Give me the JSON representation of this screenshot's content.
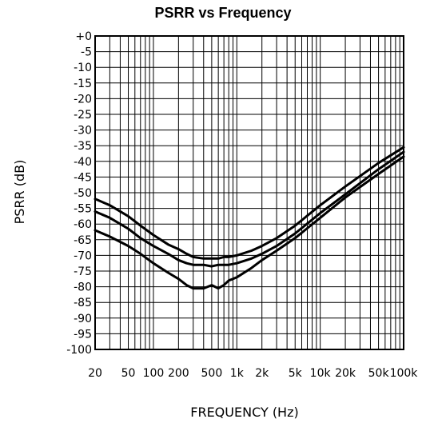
{
  "chart_data": {
    "type": "line",
    "title": "PSRR vs Frequency",
    "xlabel": "FREQUENCY (Hz)",
    "ylabel": "PSRR (dB)",
    "xscale": "log",
    "xlim": [
      20,
      100000
    ],
    "ylim": [
      -100,
      0
    ],
    "grid": true,
    "x_ticks": [
      {
        "value": 20,
        "label": "20"
      },
      {
        "value": 50,
        "label": "50"
      },
      {
        "value": 100,
        "label": "100"
      },
      {
        "value": 200,
        "label": "200"
      },
      {
        "value": 500,
        "label": "500"
      },
      {
        "value": 1000,
        "label": "1k"
      },
      {
        "value": 2000,
        "label": "2k"
      },
      {
        "value": 5000,
        "label": "5k"
      },
      {
        "value": 10000,
        "label": "10k"
      },
      {
        "value": 20000,
        "label": "20k"
      },
      {
        "value": 50000,
        "label": "50k"
      },
      {
        "value": 100000,
        "label": "100k"
      }
    ],
    "y_ticks": [
      {
        "value": 0,
        "label": "+0"
      },
      {
        "value": -5,
        "label": "-5"
      },
      {
        "value": -10,
        "label": "-10"
      },
      {
        "value": -15,
        "label": "-15"
      },
      {
        "value": -20,
        "label": "-20"
      },
      {
        "value": -25,
        "label": "-25"
      },
      {
        "value": -30,
        "label": "-30"
      },
      {
        "value": -35,
        "label": "-35"
      },
      {
        "value": -40,
        "label": "-40"
      },
      {
        "value": -45,
        "label": "-45"
      },
      {
        "value": -50,
        "label": "-50"
      },
      {
        "value": -55,
        "label": "-55"
      },
      {
        "value": -60,
        "label": "-60"
      },
      {
        "value": -65,
        "label": "-65"
      },
      {
        "value": -70,
        "label": "-70"
      },
      {
        "value": -75,
        "label": "-75"
      },
      {
        "value": -80,
        "label": "-80"
      },
      {
        "value": -85,
        "label": "-85"
      },
      {
        "value": -90,
        "label": "-90"
      },
      {
        "value": -95,
        "label": "-95"
      },
      {
        "value": -100,
        "label": "-100"
      }
    ],
    "series": [
      {
        "x": [
          20,
          30,
          50,
          70,
          100,
          150,
          200,
          250,
          300,
          400,
          500,
          600,
          700,
          800,
          1000,
          1500,
          2000,
          3000,
          5000,
          10000,
          20000,
          50000,
          100000
        ],
        "y": [
          -52,
          -54,
          -57.5,
          -60.5,
          -63.5,
          -66.5,
          -68,
          -69.5,
          -70.5,
          -71,
          -71,
          -71,
          -70.5,
          -70.5,
          -70,
          -68.5,
          -67,
          -64.5,
          -60.5,
          -54,
          -48,
          -40.5,
          -35.5
        ]
      },
      {
        "x": [
          20,
          30,
          50,
          70,
          100,
          150,
          200,
          250,
          300,
          400,
          500,
          600,
          700,
          800,
          1000,
          1500,
          2000,
          3000,
          5000,
          10000,
          20000,
          50000,
          100000
        ],
        "y": [
          -56,
          -58,
          -61.5,
          -64.5,
          -67,
          -69.5,
          -71.5,
          -72.5,
          -73,
          -73,
          -73.5,
          -73,
          -73,
          -73,
          -72.5,
          -71,
          -69.5,
          -67,
          -63,
          -56.5,
          -50.5,
          -42.5,
          -37
        ]
      },
      {
        "x": [
          20,
          30,
          50,
          70,
          100,
          150,
          200,
          250,
          300,
          400,
          500,
          600,
          700,
          800,
          900,
          1000,
          1500,
          2000,
          3000,
          5000,
          10000,
          20000,
          50000,
          100000
        ],
        "y": [
          -62,
          -64,
          -67,
          -69.5,
          -72.5,
          -75.5,
          -77.5,
          -79.5,
          -80.5,
          -80.5,
          -79.5,
          -80.5,
          -79.5,
          -78,
          -77.5,
          -77,
          -74,
          -71.5,
          -68.5,
          -64.5,
          -58,
          -51.5,
          -44,
          -38.5
        ]
      }
    ]
  }
}
